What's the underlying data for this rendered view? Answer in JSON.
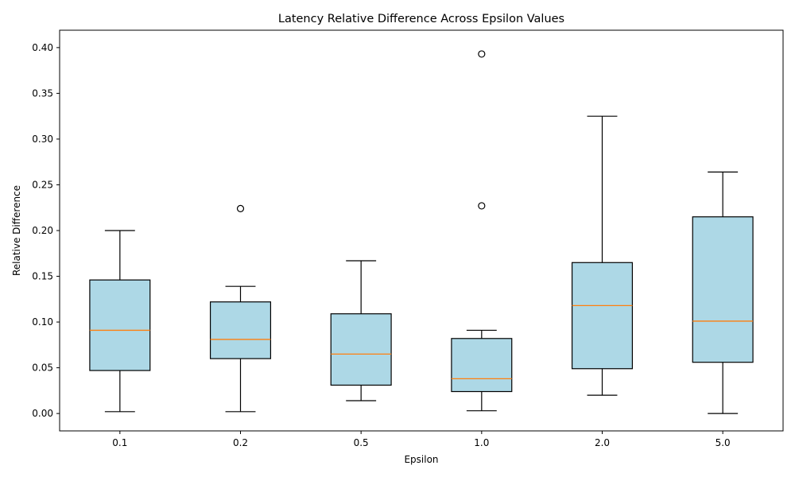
{
  "chart_data": {
    "type": "box",
    "title": "Latency Relative Difference Across Epsilon Values",
    "xlabel": "Epsilon",
    "ylabel": "Relative Difference",
    "ylim": [
      -0.019,
      0.419
    ],
    "yticks": [
      "0.00",
      "0.05",
      "0.10",
      "0.15",
      "0.20",
      "0.25",
      "0.30",
      "0.35",
      "0.40"
    ],
    "box_fill": "#add8e6",
    "median_color": "#ff7f0e",
    "grid": false,
    "legend": "none",
    "categories": [
      "0.1",
      "0.2",
      "0.5",
      "1.0",
      "2.0",
      "5.0"
    ],
    "boxes": [
      {
        "category": "0.1",
        "whisker_low": 0.002,
        "q1": 0.047,
        "median": 0.091,
        "q3": 0.146,
        "whisker_high": 0.2,
        "outliers": []
      },
      {
        "category": "0.2",
        "whisker_low": 0.002,
        "q1": 0.06,
        "median": 0.081,
        "q3": 0.122,
        "whisker_high": 0.139,
        "outliers": [
          0.224
        ]
      },
      {
        "category": "0.5",
        "whisker_low": 0.014,
        "q1": 0.031,
        "median": 0.065,
        "q3": 0.109,
        "whisker_high": 0.167,
        "outliers": []
      },
      {
        "category": "1.0",
        "whisker_low": 0.003,
        "q1": 0.024,
        "median": 0.038,
        "q3": 0.082,
        "whisker_high": 0.091,
        "outliers": [
          0.227,
          0.393
        ]
      },
      {
        "category": "2.0",
        "whisker_low": 0.02,
        "q1": 0.049,
        "median": 0.118,
        "q3": 0.165,
        "whisker_high": 0.325,
        "outliers": []
      },
      {
        "category": "5.0",
        "whisker_low": 0.0,
        "q1": 0.056,
        "median": 0.101,
        "q3": 0.215,
        "whisker_high": 0.264,
        "outliers": []
      }
    ]
  }
}
